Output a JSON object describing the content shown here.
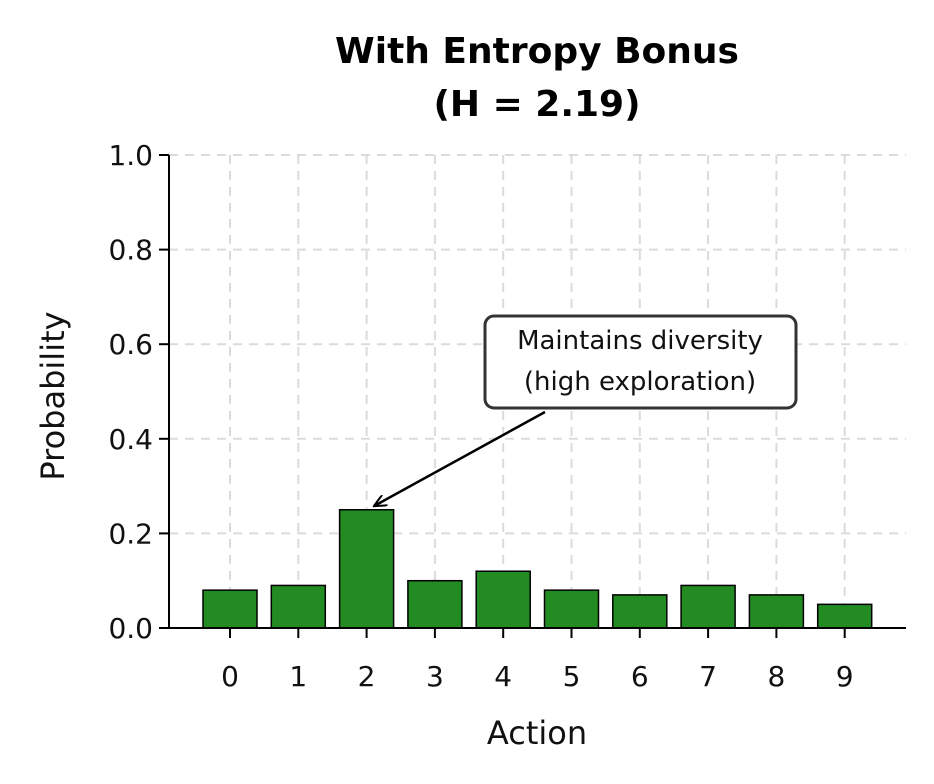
{
  "chart_data": {
    "type": "bar",
    "title": "With Entropy Bonus",
    "subtitle": "(H = 2.19)",
    "xlabel": "Action",
    "ylabel": "Probability",
    "categories": [
      "0",
      "1",
      "2",
      "3",
      "4",
      "5",
      "6",
      "7",
      "8",
      "9"
    ],
    "values": [
      0.08,
      0.09,
      0.25,
      0.1,
      0.12,
      0.08,
      0.07,
      0.09,
      0.07,
      0.05
    ],
    "ylim": [
      0,
      1.0
    ],
    "yticks": [
      "0.0",
      "0.2",
      "0.4",
      "0.6",
      "0.8",
      "1.0"
    ],
    "grid": true,
    "bar_color": "#228B22",
    "bar_edge_color": "#000000",
    "annotation": {
      "text_line1": "Maintains diversity",
      "text_line2": "(high exploration)",
      "target_category": "2",
      "target_value": 0.25
    }
  }
}
